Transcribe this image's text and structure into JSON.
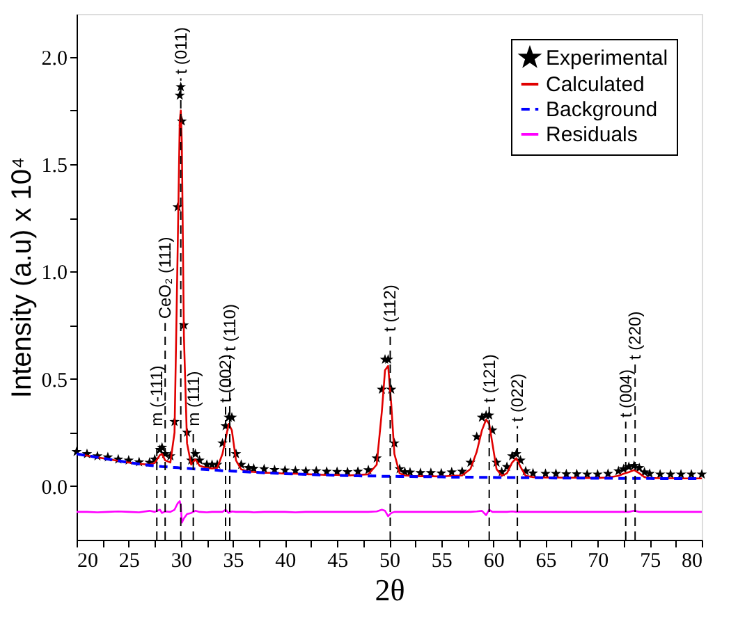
{
  "chart_data": {
    "type": "line",
    "xlabel": "2θ",
    "ylabel": "Intensity (a.u) x 10⁴",
    "x": [
      20,
      21,
      22,
      23,
      24,
      25,
      26,
      27,
      27.5,
      28,
      28.2,
      28.5,
      29,
      29.4,
      29.7,
      29.9,
      30.0,
      30.1,
      30.3,
      30.6,
      31,
      31.4,
      31.8,
      32.5,
      33,
      33.5,
      34,
      34.3,
      34.6,
      34.9,
      35.3,
      35.8,
      36.5,
      37,
      38,
      39,
      40,
      41,
      42,
      43,
      44,
      45,
      46,
      47,
      48,
      48.8,
      49.3,
      49.6,
      49.9,
      50.2,
      50.5,
      51,
      51.5,
      52,
      53,
      54,
      55,
      56,
      57,
      57.8,
      58.4,
      58.9,
      59.3,
      59.6,
      59.9,
      60.3,
      60.8,
      61.3,
      61.8,
      62.2,
      62.6,
      63.1,
      63.8,
      65,
      66,
      67,
      68,
      69,
      70,
      71,
      72,
      72.5,
      73,
      73.5,
      74,
      74.5,
      75,
      76,
      77,
      78,
      79,
      80
    ],
    "series": [
      {
        "name": "Experimental",
        "type": "scatter",
        "marker": "star",
        "color": "#000000",
        "values": [
          0.16,
          0.15,
          0.14,
          0.135,
          0.125,
          0.12,
          0.112,
          0.11,
          0.125,
          0.17,
          0.18,
          0.15,
          0.14,
          0.3,
          1.3,
          1.82,
          1.86,
          1.7,
          0.75,
          0.25,
          0.12,
          0.15,
          0.12,
          0.1,
          0.1,
          0.1,
          0.2,
          0.28,
          0.32,
          0.32,
          0.15,
          0.1,
          0.085,
          0.082,
          0.08,
          0.076,
          0.074,
          0.072,
          0.07,
          0.07,
          0.068,
          0.067,
          0.066,
          0.068,
          0.075,
          0.13,
          0.45,
          0.59,
          0.59,
          0.45,
          0.2,
          0.08,
          0.066,
          0.064,
          0.062,
          0.062,
          0.06,
          0.065,
          0.068,
          0.11,
          0.23,
          0.32,
          0.33,
          0.33,
          0.26,
          0.11,
          0.066,
          0.09,
          0.14,
          0.15,
          0.12,
          0.07,
          0.06,
          0.058,
          0.058,
          0.056,
          0.056,
          0.055,
          0.055,
          0.058,
          0.07,
          0.08,
          0.09,
          0.095,
          0.085,
          0.065,
          0.058,
          0.055,
          0.055,
          0.055,
          0.055,
          0.055
        ]
      },
      {
        "name": "Calculated",
        "color": "#e00000",
        "values": [
          0.15,
          0.142,
          0.134,
          0.126,
          0.118,
          0.11,
          0.104,
          0.1,
          0.108,
          0.145,
          0.15,
          0.12,
          0.11,
          0.25,
          1.1,
          1.7,
          1.75,
          1.6,
          0.7,
          0.2,
          0.1,
          0.125,
          0.095,
          0.085,
          0.082,
          0.085,
          0.15,
          0.22,
          0.29,
          0.26,
          0.12,
          0.078,
          0.068,
          0.066,
          0.062,
          0.062,
          0.058,
          0.058,
          0.056,
          0.054,
          0.052,
          0.052,
          0.05,
          0.052,
          0.055,
          0.1,
          0.35,
          0.54,
          0.56,
          0.38,
          0.15,
          0.06,
          0.05,
          0.048,
          0.046,
          0.046,
          0.045,
          0.048,
          0.05,
          0.08,
          0.16,
          0.26,
          0.31,
          0.29,
          0.2,
          0.08,
          0.048,
          0.06,
          0.11,
          0.13,
          0.09,
          0.048,
          0.042,
          0.04,
          0.04,
          0.039,
          0.039,
          0.038,
          0.038,
          0.04,
          0.048,
          0.058,
          0.065,
          0.075,
          0.06,
          0.042,
          0.038,
          0.037,
          0.037,
          0.036,
          0.036,
          0.036
        ]
      },
      {
        "name": "Background",
        "line_style": "dashed",
        "color": "#0000ff",
        "values": [
          0.15,
          0.142,
          0.134,
          0.126,
          0.118,
          0.11,
          0.103,
          0.097,
          0.095,
          0.092,
          0.091,
          0.09,
          0.088,
          0.087,
          0.086,
          0.085,
          0.085,
          0.085,
          0.084,
          0.083,
          0.081,
          0.08,
          0.079,
          0.077,
          0.075,
          0.074,
          0.072,
          0.071,
          0.071,
          0.07,
          0.069,
          0.068,
          0.066,
          0.065,
          0.062,
          0.06,
          0.058,
          0.057,
          0.055,
          0.053,
          0.052,
          0.05,
          0.049,
          0.048,
          0.047,
          0.047,
          0.046,
          0.046,
          0.046,
          0.046,
          0.046,
          0.045,
          0.045,
          0.045,
          0.044,
          0.044,
          0.043,
          0.042,
          0.042,
          0.042,
          0.041,
          0.041,
          0.041,
          0.041,
          0.041,
          0.04,
          0.04,
          0.04,
          0.04,
          0.04,
          0.039,
          0.039,
          0.039,
          0.039,
          0.038,
          0.038,
          0.038,
          0.037,
          0.037,
          0.037,
          0.036,
          0.036,
          0.036,
          0.036,
          0.036,
          0.036,
          0.036,
          0.035,
          0.035,
          0.035,
          0.035,
          0.035
        ]
      },
      {
        "name": "Residuals",
        "color": "#ff00ff",
        "values": [
          -0.12,
          -0.12,
          -0.122,
          -0.12,
          -0.118,
          -0.12,
          -0.122,
          -0.115,
          -0.12,
          -0.11,
          -0.125,
          -0.118,
          -0.12,
          -0.11,
          -0.08,
          -0.07,
          -0.09,
          -0.17,
          -0.15,
          -0.13,
          -0.125,
          -0.115,
          -0.12,
          -0.122,
          -0.12,
          -0.12,
          -0.12,
          -0.11,
          -0.125,
          -0.118,
          -0.12,
          -0.12,
          -0.12,
          -0.122,
          -0.12,
          -0.12,
          -0.12,
          -0.122,
          -0.12,
          -0.12,
          -0.12,
          -0.12,
          -0.12,
          -0.12,
          -0.12,
          -0.118,
          -0.11,
          -0.115,
          -0.14,
          -0.125,
          -0.12,
          -0.12,
          -0.12,
          -0.12,
          -0.12,
          -0.12,
          -0.12,
          -0.12,
          -0.12,
          -0.12,
          -0.118,
          -0.115,
          -0.135,
          -0.11,
          -0.12,
          -0.12,
          -0.12,
          -0.12,
          -0.118,
          -0.12,
          -0.12,
          -0.12,
          -0.12,
          -0.12,
          -0.12,
          -0.12,
          -0.12,
          -0.12,
          -0.12,
          -0.12,
          -0.12,
          -0.12,
          -0.12,
          -0.115,
          -0.12,
          -0.12,
          -0.12,
          -0.12,
          -0.12,
          -0.12,
          -0.12,
          -0.12
        ]
      }
    ],
    "xlim": [
      20,
      80
    ],
    "xticks": [
      20,
      {
        "value": 22.5,
        "label": null
      },
      25,
      {
        "value": 27.5,
        "label": null
      },
      30,
      {
        "value": 32.5,
        "label": null
      },
      35,
      {
        "value": 37.5,
        "label": null
      },
      40,
      {
        "value": 42.5,
        "label": null
      },
      45,
      {
        "value": 47.5,
        "label": null
      },
      50,
      {
        "value": 52.5,
        "label": null
      },
      55,
      {
        "value": 57.5,
        "label": null
      },
      60,
      {
        "value": 62.5,
        "label": null
      },
      65,
      {
        "value": 67.5,
        "label": null
      },
      70,
      {
        "value": 72.5,
        "label": null
      },
      75,
      {
        "value": 77.5,
        "label": null
      },
      80
    ],
    "ylim": [
      -0.25,
      2.2
    ],
    "yticks": [
      {
        "value": 0,
        "label": "0.0"
      },
      {
        "value": 0.25,
        "label": null
      },
      {
        "value": 0.5,
        "label": "0.5"
      },
      {
        "value": 0.75,
        "label": null
      },
      {
        "value": 1,
        "label": "1.0"
      },
      {
        "value": 1.25,
        "label": null
      },
      {
        "value": 1.5,
        "label": "1.5"
      },
      {
        "value": 1.75,
        "label": null
      },
      {
        "value": 2,
        "label": "2.0"
      }
    ],
    "ref_lines": [
      {
        "axis": "x",
        "value": 27.7,
        "line_style": "dashed",
        "color": "#000000"
      },
      {
        "axis": "x",
        "value": 28.5,
        "line_style": "dashed",
        "color": "#000000"
      },
      {
        "axis": "x",
        "value": 30.0,
        "line_style": "dashed",
        "color": "#000000"
      },
      {
        "axis": "x",
        "value": 31.2,
        "line_style": "dashed",
        "color": "#000000"
      },
      {
        "axis": "x",
        "value": 34.3,
        "line_style": "dashed",
        "color": "#000000"
      },
      {
        "axis": "x",
        "value": 34.7,
        "line_style": "dashed",
        "color": "#000000"
      },
      {
        "axis": "x",
        "value": 50.1,
        "line_style": "dashed",
        "color": "#000000"
      },
      {
        "axis": "x",
        "value": 59.6,
        "line_style": "dashed",
        "color": "#000000"
      },
      {
        "axis": "x",
        "value": 62.3,
        "line_style": "dashed",
        "color": "#000000"
      },
      {
        "axis": "x",
        "value": 72.7,
        "line_style": "dashed",
        "color": "#000000"
      },
      {
        "axis": "x",
        "value": 73.6,
        "line_style": "dashed",
        "color": "#000000"
      }
    ],
    "annotations": [
      {
        "text": "m (-111)",
        "x": 27.7,
        "y": 0.26
      },
      {
        "text": "CeO₂ (111)",
        "x": 28.5,
        "y": 0.76
      },
      {
        "text": "t (011)",
        "x": 30.0,
        "y": 1.9
      },
      {
        "text": "m (111)",
        "x": 31.2,
        "y": 0.26
      },
      {
        "text": "t (002)",
        "x": 34.3,
        "y": 0.37
      },
      {
        "text": "t (110)",
        "x": 34.7,
        "y": 0.61
      },
      {
        "text": "t (112)",
        "x": 50.1,
        "y": 0.7
      },
      {
        "text": "t (121)",
        "x": 59.6,
        "y": 0.37
      },
      {
        "text": "t (022)",
        "x": 62.3,
        "y": 0.28
      },
      {
        "text": "t (004)",
        "x": 72.7,
        "y": 0.3
      },
      {
        "text": "t (220)",
        "x": 73.6,
        "y": 0.57
      }
    ],
    "grid": false,
    "legend": "top right"
  }
}
